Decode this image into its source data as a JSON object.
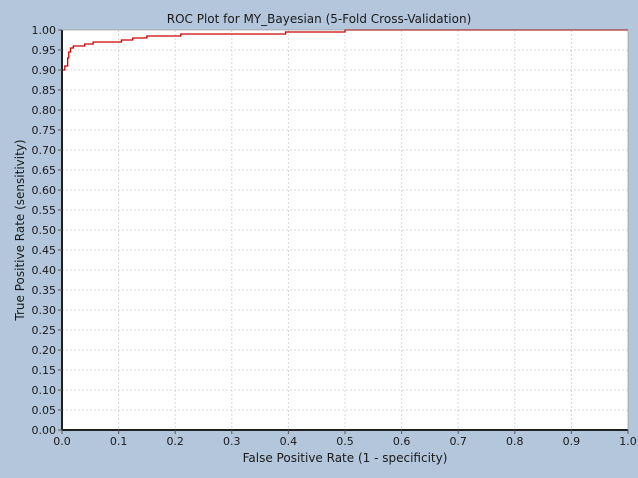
{
  "chart_data": {
    "type": "line",
    "title": "ROC Plot for MY_Bayesian  (5-Fold Cross-Validation)",
    "xlabel": "False Positive Rate (1 - specificity)",
    "ylabel": "True Positive Rate (sensitivity)",
    "xlim": [
      0,
      1
    ],
    "ylim": [
      0,
      1
    ],
    "grid": true,
    "x_ticks": [
      "0.0",
      "0.1",
      "0.2",
      "0.3",
      "0.4",
      "0.5",
      "0.6",
      "0.7",
      "0.8",
      "0.9",
      "1.0"
    ],
    "y_ticks": [
      "0.00",
      "0.05",
      "0.10",
      "0.15",
      "0.20",
      "0.25",
      "0.30",
      "0.35",
      "0.40",
      "0.45",
      "0.50",
      "0.55",
      "0.60",
      "0.65",
      "0.70",
      "0.75",
      "0.80",
      "0.85",
      "0.90",
      "0.95",
      "1.00"
    ],
    "series": [
      {
        "color": "#cc0000",
        "points": [
          [
            0,
            0
          ],
          [
            0,
            0.9
          ],
          [
            0.005,
            0.9
          ],
          [
            0.005,
            0.91
          ],
          [
            0.01,
            0.91
          ],
          [
            0.01,
            0.93
          ],
          [
            0.012,
            0.93
          ],
          [
            0.012,
            0.945
          ],
          [
            0.015,
            0.945
          ],
          [
            0.015,
            0.955
          ],
          [
            0.02,
            0.955
          ],
          [
            0.02,
            0.96
          ],
          [
            0.04,
            0.96
          ],
          [
            0.04,
            0.965
          ],
          [
            0.055,
            0.965
          ],
          [
            0.055,
            0.97
          ],
          [
            0.105,
            0.97
          ],
          [
            0.105,
            0.975
          ],
          [
            0.125,
            0.975
          ],
          [
            0.125,
            0.98
          ],
          [
            0.15,
            0.98
          ],
          [
            0.15,
            0.985
          ],
          [
            0.21,
            0.985
          ],
          [
            0.21,
            0.99
          ],
          [
            0.395,
            0.99
          ],
          [
            0.395,
            0.995
          ],
          [
            0.5,
            0.995
          ],
          [
            0.5,
            1.0
          ],
          [
            1.0,
            1.0
          ]
        ]
      }
    ]
  }
}
